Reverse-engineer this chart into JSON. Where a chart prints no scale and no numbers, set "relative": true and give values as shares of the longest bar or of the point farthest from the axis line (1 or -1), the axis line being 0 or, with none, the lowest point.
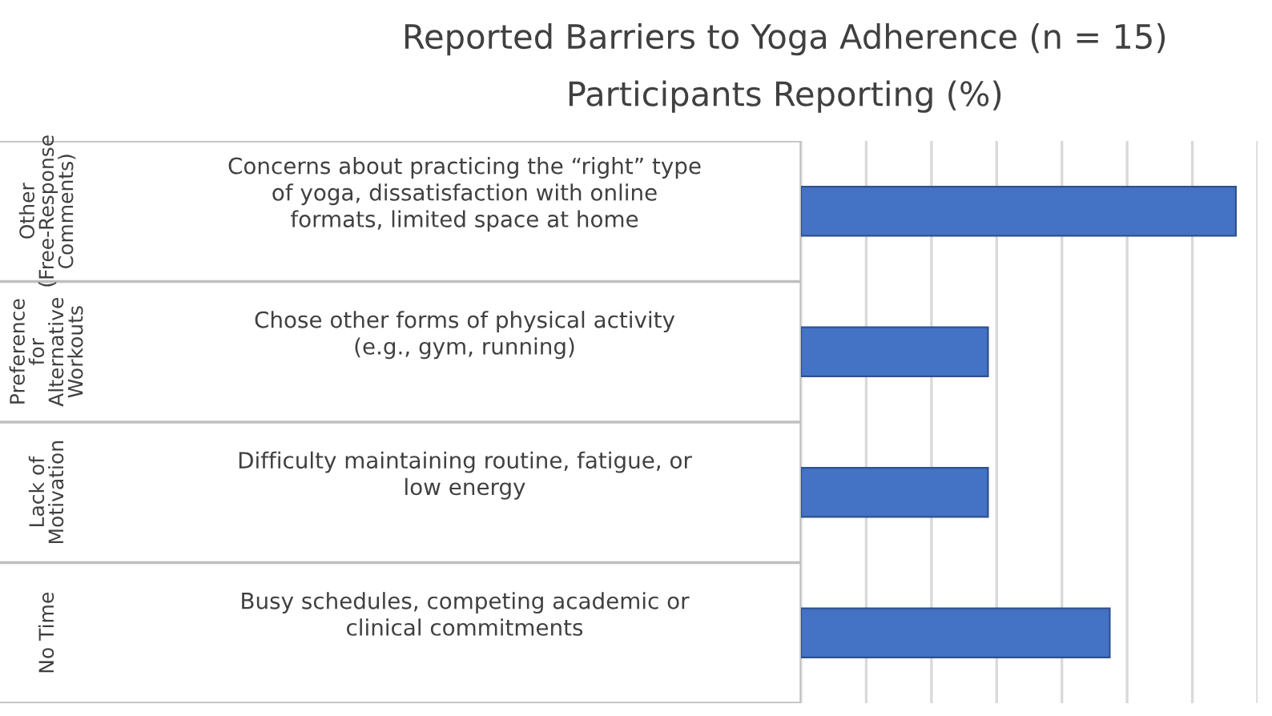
{
  "chart_data": {
    "type": "bar",
    "orientation": "horizontal",
    "relative": true,
    "title": "Reported Barriers to Yoga Adherence (n = 15)",
    "subtitle": "Participants Reporting (%)",
    "categories": [
      "Concerns about practicing the “right” type of yoga, dissatisfaction with online formats, limited space at home",
      "Chose other forms of physical activity (e.g., gym, running)",
      "Difficulty maintaining routine, fatigue, or low energy",
      "Busy schedules, competing academic or clinical commitments"
    ],
    "annotations": [
      "Other (Free-Response Comments)",
      "Preference for Alternative Workouts",
      "Lack of Motivation",
      "No Time"
    ],
    "values": [
      1,
      0.43,
      0.43,
      0.71
    ],
    "color": "#4472c4",
    "grid": "x"
  }
}
